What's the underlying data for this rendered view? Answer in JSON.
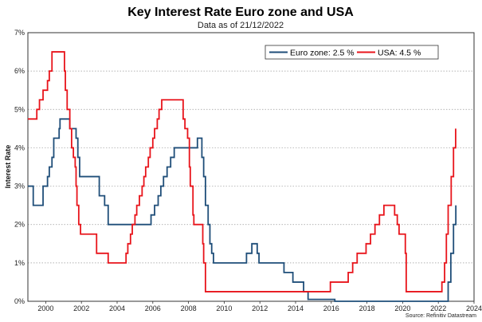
{
  "chart_data": {
    "type": "line",
    "step": true,
    "title": "Key Interest Rate Euro zone and USA",
    "subtitle": "Data as of 21/12/2022",
    "ylabel": "Interest Rate",
    "xlabel": "",
    "source": "Source: Refinitiv Datastream",
    "xlim": [
      1999,
      2024
    ],
    "ylim": [
      0,
      7
    ],
    "x_ticks": [
      2000,
      2002,
      2004,
      2006,
      2008,
      2010,
      2012,
      2014,
      2016,
      2018,
      2020,
      2022,
      2024
    ],
    "x_tick_labels": [
      "2000",
      "2002",
      "2004",
      "2006",
      "2008",
      "2010",
      "2012",
      "2014",
      "2016",
      "2018",
      "2020",
      "2022",
      "2024"
    ],
    "y_ticks": [
      0,
      1,
      2,
      3,
      4,
      5,
      6,
      7
    ],
    "y_tick_labels": [
      "0%",
      "1%",
      "2%",
      "3%",
      "4%",
      "5%",
      "6%",
      "7%"
    ],
    "grid": "horizontal-dotted",
    "legend_position": "top-right",
    "series": [
      {
        "name": "Euro zone: 2.5 %",
        "color": "#1f4e79",
        "points": [
          [
            1999.0,
            3.0
          ],
          [
            1999.3,
            2.5
          ],
          [
            1999.85,
            3.0
          ],
          [
            2000.1,
            3.25
          ],
          [
            2000.2,
            3.5
          ],
          [
            2000.35,
            3.75
          ],
          [
            2000.45,
            4.25
          ],
          [
            2000.75,
            4.5
          ],
          [
            2000.8,
            4.75
          ],
          [
            2001.35,
            4.5
          ],
          [
            2001.7,
            4.25
          ],
          [
            2001.8,
            3.75
          ],
          [
            2001.9,
            3.25
          ],
          [
            2003.0,
            2.75
          ],
          [
            2003.3,
            2.5
          ],
          [
            2003.5,
            2.0
          ],
          [
            2005.9,
            2.25
          ],
          [
            2006.1,
            2.5
          ],
          [
            2006.3,
            2.75
          ],
          [
            2006.45,
            3.0
          ],
          [
            2006.6,
            3.25
          ],
          [
            2006.8,
            3.5
          ],
          [
            2007.0,
            3.75
          ],
          [
            2007.2,
            4.0
          ],
          [
            2008.5,
            4.25
          ],
          [
            2008.75,
            3.75
          ],
          [
            2008.85,
            3.25
          ],
          [
            2008.95,
            2.5
          ],
          [
            2009.1,
            2.0
          ],
          [
            2009.2,
            1.5
          ],
          [
            2009.3,
            1.25
          ],
          [
            2009.4,
            1.0
          ],
          [
            2011.25,
            1.25
          ],
          [
            2011.55,
            1.5
          ],
          [
            2011.85,
            1.25
          ],
          [
            2011.95,
            1.0
          ],
          [
            2013.35,
            0.75
          ],
          [
            2013.85,
            0.5
          ],
          [
            2014.45,
            0.25
          ],
          [
            2014.7,
            0.05
          ],
          [
            2016.2,
            0.0
          ],
          [
            2022.55,
            0.5
          ],
          [
            2022.7,
            1.25
          ],
          [
            2022.85,
            2.0
          ],
          [
            2022.98,
            2.5
          ]
        ]
      },
      {
        "name": "USA: 4.5 %",
        "color": "#e8141b",
        "points": [
          [
            1999.0,
            4.75
          ],
          [
            1999.5,
            5.0
          ],
          [
            1999.65,
            5.25
          ],
          [
            1999.85,
            5.5
          ],
          [
            2000.1,
            5.75
          ],
          [
            2000.2,
            6.0
          ],
          [
            2000.35,
            6.5
          ],
          [
            2001.05,
            6.0
          ],
          [
            2001.1,
            5.5
          ],
          [
            2001.2,
            5.0
          ],
          [
            2001.35,
            4.5
          ],
          [
            2001.45,
            4.0
          ],
          [
            2001.55,
            3.75
          ],
          [
            2001.65,
            3.5
          ],
          [
            2001.7,
            3.0
          ],
          [
            2001.75,
            2.5
          ],
          [
            2001.85,
            2.0
          ],
          [
            2001.95,
            1.75
          ],
          [
            2002.85,
            1.25
          ],
          [
            2003.5,
            1.0
          ],
          [
            2004.5,
            1.25
          ],
          [
            2004.6,
            1.5
          ],
          [
            2004.75,
            1.75
          ],
          [
            2004.85,
            2.0
          ],
          [
            2005.0,
            2.25
          ],
          [
            2005.1,
            2.5
          ],
          [
            2005.25,
            2.75
          ],
          [
            2005.4,
            3.0
          ],
          [
            2005.5,
            3.25
          ],
          [
            2005.6,
            3.5
          ],
          [
            2005.75,
            3.75
          ],
          [
            2005.85,
            4.0
          ],
          [
            2006.0,
            4.25
          ],
          [
            2006.1,
            4.5
          ],
          [
            2006.25,
            4.75
          ],
          [
            2006.35,
            5.0
          ],
          [
            2006.5,
            5.25
          ],
          [
            2007.7,
            4.75
          ],
          [
            2007.8,
            4.5
          ],
          [
            2007.95,
            4.25
          ],
          [
            2008.05,
            3.5
          ],
          [
            2008.1,
            3.0
          ],
          [
            2008.25,
            2.25
          ],
          [
            2008.3,
            2.0
          ],
          [
            2008.8,
            1.5
          ],
          [
            2008.85,
            1.0
          ],
          [
            2008.95,
            0.25
          ],
          [
            2015.95,
            0.5
          ],
          [
            2016.95,
            0.75
          ],
          [
            2017.2,
            1.0
          ],
          [
            2017.45,
            1.25
          ],
          [
            2017.95,
            1.5
          ],
          [
            2018.2,
            1.75
          ],
          [
            2018.45,
            2.0
          ],
          [
            2018.7,
            2.25
          ],
          [
            2018.95,
            2.5
          ],
          [
            2019.55,
            2.25
          ],
          [
            2019.7,
            2.0
          ],
          [
            2019.8,
            1.75
          ],
          [
            2020.15,
            1.25
          ],
          [
            2020.2,
            0.25
          ],
          [
            2022.2,
            0.5
          ],
          [
            2022.35,
            1.0
          ],
          [
            2022.45,
            1.75
          ],
          [
            2022.55,
            2.5
          ],
          [
            2022.72,
            3.25
          ],
          [
            2022.85,
            4.0
          ],
          [
            2022.97,
            4.5
          ]
        ]
      }
    ]
  }
}
